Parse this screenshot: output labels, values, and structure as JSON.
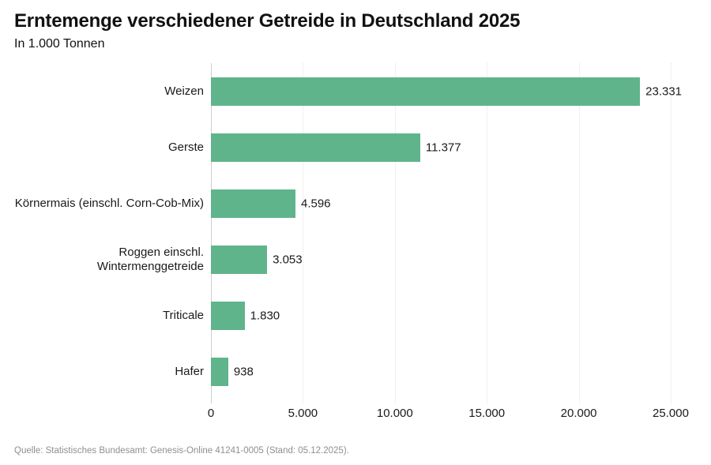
{
  "header": {
    "title": "Erntemenge verschiedener Getreide in Deutschland 2025",
    "subtitle": "In 1.000 Tonnen"
  },
  "chart_data": {
    "type": "bar",
    "orientation": "horizontal",
    "title": "Erntemenge verschiedener Getreide in Deutschland 2025",
    "subtitle": "In 1.000 Tonnen",
    "categories": [
      "Weizen",
      "Gerste",
      "Körnermais (einschl. Corn-Cob-Mix)",
      "Roggen einschl. Wintermenggetreide",
      "Triticale",
      "Hafer"
    ],
    "values": [
      23331,
      11377,
      4596,
      3053,
      1830,
      938
    ],
    "value_labels": [
      "23.331",
      "11.377",
      "4.596",
      "3.053",
      "1.830",
      "938"
    ],
    "xlabel": "",
    "ylabel": "",
    "xlim": [
      0,
      25000
    ],
    "x_ticks": [
      0,
      5000,
      10000,
      15000,
      20000,
      25000
    ],
    "x_tick_labels": [
      "0",
      "5.000",
      "10.000",
      "15.000",
      "20.000",
      "25.000"
    ],
    "grid": "vertical-dotted",
    "legend": "none",
    "bar_color": "#60b48c"
  },
  "footer": {
    "source": "Quelle: Statistisches Bundesamt: Genesis-Online 41241-0005 (Stand: 05.12.2025)."
  }
}
